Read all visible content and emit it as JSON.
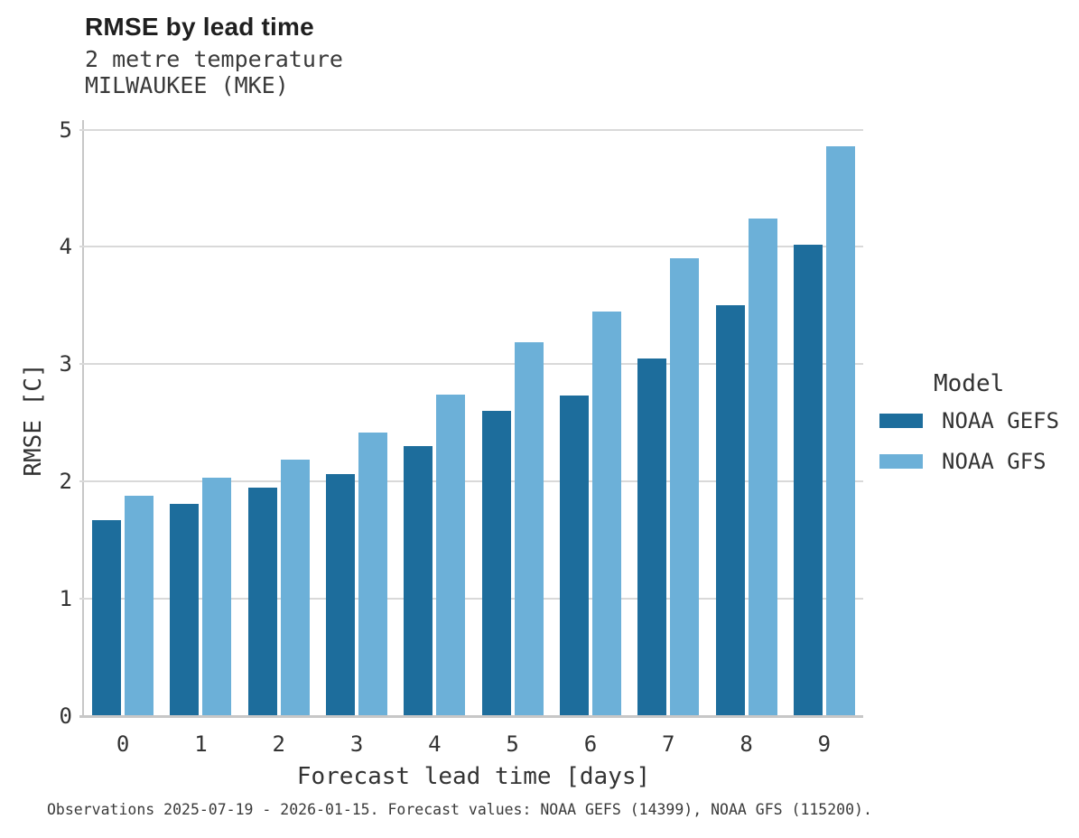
{
  "header": {
    "title": "RMSE by lead time",
    "subtitle_line1": "2 metre temperature",
    "subtitle_line2": "MILWAUKEE (MKE)"
  },
  "legend": {
    "title": "Model"
  },
  "caption": {
    "text": "Observations 2025-07-19 - 2026-01-15. Forecast values: NOAA GEFS (14399), NOAA GFS (115200)."
  },
  "colors": {
    "gefs_dark_blue": "#1d6d9c",
    "gfs_light_blue": "#6cb0d8",
    "gridline": "#d9d9d9",
    "axis_spine": "#c7c7c7",
    "text": "#333333"
  },
  "chart_data": {
    "type": "bar",
    "title": "RMSE by lead time",
    "subtitle": [
      "2 metre temperature",
      "MILWAUKEE (MKE)"
    ],
    "xlabel": "Forecast lead time [days]",
    "ylabel": "RMSE [C]",
    "categories": [
      "0",
      "1",
      "2",
      "3",
      "4",
      "5",
      "6",
      "7",
      "8",
      "9"
    ],
    "series": [
      {
        "name": "NOAA GEFS",
        "color": "#1d6d9c",
        "values": [
          1.67,
          1.81,
          1.95,
          2.06,
          2.3,
          2.6,
          2.73,
          3.05,
          3.5,
          4.02
        ]
      },
      {
        "name": "NOAA GFS",
        "color": "#6cb0d8",
        "values": [
          1.88,
          2.03,
          2.19,
          2.42,
          2.74,
          3.19,
          3.45,
          3.9,
          4.24,
          4.86
        ]
      }
    ],
    "ylim": [
      0,
      5
    ],
    "yticks": [
      0,
      1,
      2,
      3,
      4,
      5
    ],
    "grid": "horizontal-only",
    "legend_title": "Model",
    "legend_position": "right",
    "caption": "Observations 2025-07-19 - 2026-01-15. Forecast values: NOAA GEFS (14399), NOAA GFS (115200)."
  }
}
